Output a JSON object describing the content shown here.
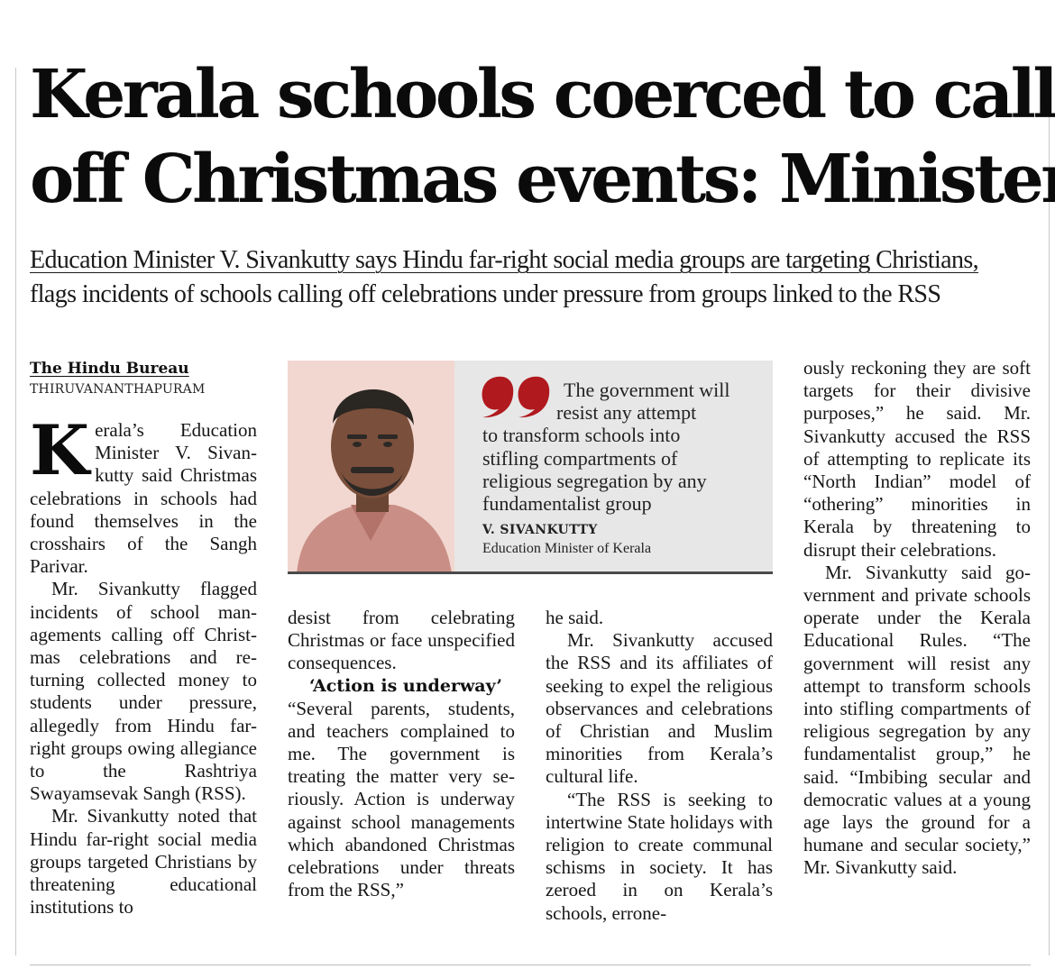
{
  "headline": {
    "line1": "Kerala schools coerced to call",
    "line2": "off Christmas events: Minister"
  },
  "deck": {
    "line1": "Education Minister V. Sivankutty says Hindu far-right social media groups are targeting Christians,",
    "line2": "flags incidents of schools calling off celebrations under pressure from groups linked to the RSS"
  },
  "byline": {
    "author": "The Hindu Bureau",
    "dateline": "THIRUVANANTHAPURAM"
  },
  "pullquote": {
    "line1": "The government will",
    "line2": "resist any attempt",
    "line3": "to transform schools into",
    "line4": "stifling compartments of",
    "line5": "religious segregation by any",
    "line6": "fundamentalist group",
    "name": "V. SIVANKUTTY",
    "title": "Education Minister of Kerala",
    "photo_icon": "portrait-photo",
    "quote_icon": "quotation-mark-icon",
    "accent_color": "#b0191e"
  },
  "body": {
    "dropcap": "K",
    "p1": "erala’s Education Minister V. Sivan­kutty said Christ­mas celebrations in schools had found them­selves in the crosshairs of the Sangh Parivar.",
    "p2": "Mr. Sivankutty flagged incidents of school man­agements calling off Christ­mas celebrations and re­turning collected money to students under pressure, allegedly from Hindu far-right groups owing alle­giance to the Rashtriya Swayamsevak Sangh (RSS).",
    "p3": "Mr. Sivankutty noted that Hindu far-right social media groups targeted Christians by threatening educational institutions to",
    "p4": "desist from celebrating Christmas or face unspeci­fied consequences.",
    "subhead": "‘Action is underway’",
    "p5": "“Several parents, students, and teachers complained to me. The government is treating the matter very se­riously. Action is underway against school manage­ments which abandoned Christmas celebrations un­der threats from the RSS,”",
    "p6": "he said.",
    "p7": "Mr. Sivankutty accused the RSS and its affiliates of seeking to expel the reli­gious observances and ce­lebrations of Christian and Muslim minorities from Kerala’s cultural life.",
    "p8": "“The RSS is seeking to intertwine State holidays with religion to create communal schisms in so­ciety. It has zeroed in on Kerala’s schools, errone-",
    "p9": "ously reckoning they are soft targets for their divi­sive purposes,” he said. Mr. Sivankutty accused the RSS of attempting to repli­cate its “North Indian” mo­del of “othering” minori­ties in Kerala by threatening to disrupt their celebrations.",
    "p10": "Mr. Sivankutty said go­vernment and private schools operate under the Kerala Educational Rules. “The government will re­sist any attempt to trans­form schools into stifling compartments of religious segregation by any funda­mentalist group,” he said. “Imbibing secular and de­mocratic values at a young age lays the ground for a humane and secular socie­ty,” Mr. Sivankutty said."
  }
}
